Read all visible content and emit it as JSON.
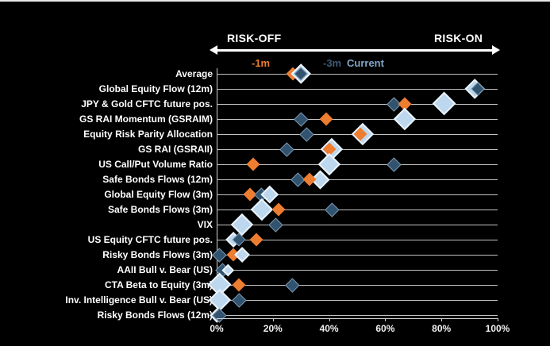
{
  "header": {
    "risk_off_label": "RISK-OFF",
    "risk_on_label": "RISK-ON"
  },
  "legend": [
    {
      "name": "-1m",
      "label": "-1m",
      "color": "#ED7D31"
    },
    {
      "name": "-3m",
      "label": "-3m",
      "color": "#3E5A75"
    },
    {
      "name": "current",
      "label": "Current",
      "color": "#7FA6C9"
    }
  ],
  "colors": {
    "background": "#000000",
    "minus1m_marker": "#ED7D31",
    "minus3m_marker": "#31536F",
    "current_marker": "#BDD7EE",
    "gridline": "#C2C2C2",
    "text": "#FFFFFF"
  },
  "chart_data": {
    "type": "scatter",
    "title": "",
    "xlabel": "",
    "ylabel": "",
    "x_axis": {
      "range": [
        0,
        100
      ],
      "unit": "%",
      "ticks": [
        "0%",
        "20%",
        "40%",
        "60%",
        "80%",
        "100%"
      ]
    },
    "legend_position": "top",
    "grid": "horizontal-category-lines",
    "series_names": [
      "-1m",
      "-3m",
      "Current"
    ],
    "rows": [
      {
        "label": "Average",
        "markers": [
          {
            "series": "-1m",
            "value": 27,
            "size": 17
          },
          {
            "series": "current",
            "value": 30,
            "size": 26
          },
          {
            "series": "-3m",
            "value": 30,
            "size": 17
          }
        ]
      },
      {
        "label": "Global Equity Flow (12m)",
        "markers": [
          {
            "series": "-1m",
            "value": 93,
            "size": 17
          },
          {
            "series": "current",
            "value": 92,
            "size": 26
          },
          {
            "series": "-3m",
            "value": 93,
            "size": 17
          }
        ]
      },
      {
        "label": "JPY & Gold CFTC future pos.",
        "markers": [
          {
            "series": "-3m",
            "value": 63,
            "size": 18
          },
          {
            "series": "-1m",
            "value": 67,
            "size": 17
          },
          {
            "series": "current",
            "value": 81,
            "size": 30
          }
        ]
      },
      {
        "label": "GS RAI Momentum (GSRAIM)",
        "markers": [
          {
            "series": "-3m",
            "value": 30,
            "size": 18
          },
          {
            "series": "-1m",
            "value": 39,
            "size": 17
          },
          {
            "series": "current",
            "value": 67,
            "size": 28
          }
        ]
      },
      {
        "label": "Equity Risk Parity Allocation",
        "markers": [
          {
            "series": "-3m",
            "value": 32,
            "size": 18
          },
          {
            "series": "current",
            "value": 52,
            "size": 28
          },
          {
            "series": "-1m",
            "value": 51,
            "size": 17
          }
        ]
      },
      {
        "label": "GS RAI (GSRAII)",
        "markers": [
          {
            "series": "-3m",
            "value": 25,
            "size": 18
          },
          {
            "series": "current",
            "value": 41,
            "size": 28
          },
          {
            "series": "-1m",
            "value": 40,
            "size": 17
          }
        ]
      },
      {
        "label": "US Call/Put Volume Ratio",
        "markers": [
          {
            "series": "-1m",
            "value": 13,
            "size": 17
          },
          {
            "series": "current",
            "value": 40,
            "size": 28
          },
          {
            "series": "-3m",
            "value": 63,
            "size": 18
          }
        ]
      },
      {
        "label": "Safe Bonds Flows (12m)",
        "markers": [
          {
            "series": "-3m",
            "value": 29,
            "size": 18
          },
          {
            "series": "current",
            "value": 37,
            "size": 24
          },
          {
            "series": "-1m",
            "value": 33,
            "size": 17
          }
        ]
      },
      {
        "label": "Global Equity Flow (3m)",
        "markers": [
          {
            "series": "-1m",
            "value": 12,
            "size": 17
          },
          {
            "series": "-3m",
            "value": 16,
            "size": 18
          },
          {
            "series": "current",
            "value": 19,
            "size": 22
          }
        ]
      },
      {
        "label": "Safe Bonds Flows (3m)",
        "markers": [
          {
            "series": "current",
            "value": 16,
            "size": 28
          },
          {
            "series": "-1m",
            "value": 22,
            "size": 17
          },
          {
            "series": "-3m",
            "value": 41,
            "size": 18
          }
        ]
      },
      {
        "label": "VIX",
        "markers": [
          {
            "series": "current",
            "value": 9,
            "size": 28
          },
          {
            "series": "-3m",
            "value": 21,
            "size": 18
          }
        ]
      },
      {
        "label": "US Equity CFTC future pos.",
        "markers": [
          {
            "series": "current",
            "value": 6,
            "size": 20
          },
          {
            "series": "-3m",
            "value": 8,
            "size": 17
          },
          {
            "series": "-1m",
            "value": 14,
            "size": 17
          }
        ]
      },
      {
        "label": "Risky Bonds Flows (3m)",
        "markers": [
          {
            "series": "-3m",
            "value": 1,
            "size": 18
          },
          {
            "series": "-1m",
            "value": 6,
            "size": 17
          },
          {
            "series": "current",
            "value": 9,
            "size": 20
          }
        ]
      },
      {
        "label": "AAII Bull v. Bear (US)",
        "markers": [
          {
            "series": "-3m",
            "value": 2,
            "size": 18
          },
          {
            "series": "current",
            "value": 4,
            "size": 15
          }
        ]
      },
      {
        "label": "CTA Beta to Equity (3m)",
        "markers": [
          {
            "series": "current",
            "value": 1,
            "size": 30
          },
          {
            "series": "-1m",
            "value": 8,
            "size": 17
          },
          {
            "series": "-3m",
            "value": 27,
            "size": 18
          }
        ]
      },
      {
        "label": "Inv. Intelligence Bull v. Bear (US)",
        "markers": [
          {
            "series": "current",
            "value": 1,
            "size": 28
          },
          {
            "series": "-3m",
            "value": 8,
            "size": 18
          }
        ]
      },
      {
        "label": "Risky Bonds Flows (12m)",
        "markers": [
          {
            "series": "-1m",
            "value": 0,
            "size": 17
          },
          {
            "series": "current",
            "value": 0,
            "size": 18
          },
          {
            "series": "-3m",
            "value": 1,
            "size": 18
          }
        ]
      }
    ]
  }
}
